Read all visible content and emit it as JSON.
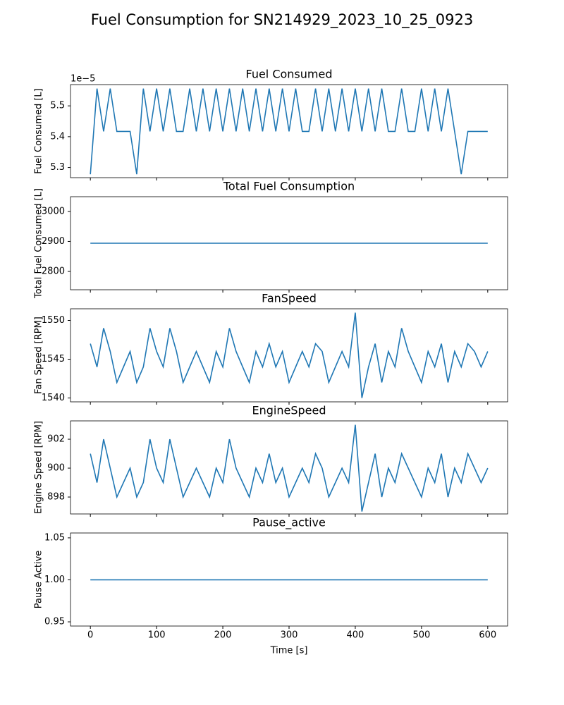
{
  "title": "Fuel Consumption for SN214929_2023_10_25_0923",
  "chart_data": [
    {
      "type": "line",
      "title": "Fuel Consumed",
      "ylabel": "Fuel Consumed [L]",
      "offset_text": "1e−5",
      "color": "#1f77b4",
      "xlim": [
        -30,
        630
      ],
      "xticks": [
        0,
        100,
        200,
        300,
        400,
        500,
        600
      ],
      "ylim": [
        5.267,
        5.569
      ],
      "yticks": [
        5.3,
        5.4,
        5.5
      ],
      "x": [
        0,
        10,
        20,
        30,
        40,
        50,
        60,
        70,
        80,
        90,
        100,
        110,
        120,
        130,
        140,
        150,
        160,
        170,
        180,
        190,
        200,
        210,
        220,
        230,
        240,
        250,
        260,
        270,
        280,
        290,
        300,
        310,
        320,
        330,
        340,
        350,
        360,
        370,
        380,
        390,
        400,
        410,
        420,
        430,
        440,
        450,
        460,
        470,
        480,
        490,
        500,
        510,
        520,
        530,
        540,
        550,
        560,
        570,
        580,
        590,
        600
      ],
      "values": [
        5.278,
        5.556,
        5.417,
        5.556,
        5.417,
        5.417,
        5.417,
        5.278,
        5.556,
        5.417,
        5.556,
        5.417,
        5.556,
        5.417,
        5.417,
        5.556,
        5.417,
        5.556,
        5.417,
        5.556,
        5.417,
        5.556,
        5.417,
        5.556,
        5.417,
        5.556,
        5.417,
        5.556,
        5.417,
        5.556,
        5.417,
        5.556,
        5.417,
        5.417,
        5.556,
        5.417,
        5.556,
        5.417,
        5.556,
        5.417,
        5.556,
        5.417,
        5.556,
        5.417,
        5.556,
        5.417,
        5.417,
        5.556,
        5.417,
        5.417,
        5.556,
        5.417,
        5.556,
        5.417,
        5.556,
        5.417,
        5.278,
        5.417,
        5.417,
        5.417,
        5.417
      ]
    },
    {
      "type": "line",
      "title": "Total Fuel Consumption",
      "ylabel": "Total Fuel Consumed [L]",
      "color": "#1f77b4",
      "xlim": [
        -30,
        630
      ],
      "xticks": [
        0,
        100,
        200,
        300,
        400,
        500,
        600
      ],
      "ylim": [
        2739,
        3049
      ],
      "yticks": [
        2800,
        2900,
        3000
      ],
      "x": [
        0,
        600
      ],
      "values": [
        2894,
        2894
      ]
    },
    {
      "type": "line",
      "title": "FanSpeed",
      "ylabel": "Fan Speed [RPM]",
      "color": "#1f77b4",
      "xlim": [
        -30,
        630
      ],
      "xticks": [
        0,
        100,
        200,
        300,
        400,
        500,
        600
      ],
      "ylim": [
        1539.5,
        1551.5
      ],
      "yticks": [
        1540,
        1545,
        1550
      ],
      "x": [
        0,
        10,
        20,
        30,
        40,
        50,
        60,
        70,
        80,
        90,
        100,
        110,
        120,
        130,
        140,
        150,
        160,
        170,
        180,
        190,
        200,
        210,
        220,
        230,
        240,
        250,
        260,
        270,
        280,
        290,
        300,
        310,
        320,
        330,
        340,
        350,
        360,
        370,
        380,
        390,
        400,
        410,
        420,
        430,
        440,
        450,
        460,
        470,
        480,
        490,
        500,
        510,
        520,
        530,
        540,
        550,
        560,
        570,
        580,
        590,
        600
      ],
      "values": [
        1547,
        1544,
        1549,
        1546,
        1542,
        1544,
        1546,
        1542,
        1544,
        1549,
        1546,
        1544,
        1549,
        1546,
        1542,
        1544,
        1546,
        1544,
        1542,
        1546,
        1544,
        1549,
        1546,
        1544,
        1542,
        1546,
        1544,
        1547,
        1544,
        1546,
        1542,
        1544,
        1546,
        1544,
        1547,
        1546,
        1542,
        1544,
        1546,
        1544,
        1551,
        1540,
        1544,
        1547,
        1542,
        1546,
        1544,
        1549,
        1546,
        1544,
        1542,
        1546,
        1544,
        1547,
        1542,
        1546,
        1544,
        1547,
        1546,
        1544,
        1546
      ]
    },
    {
      "type": "line",
      "title": "EngineSpeed",
      "ylabel": "Engine Speed [RPM]",
      "color": "#1f77b4",
      "xlim": [
        -30,
        630
      ],
      "xticks": [
        0,
        100,
        200,
        300,
        400,
        500,
        600
      ],
      "ylim": [
        896.83,
        903.27
      ],
      "yticks": [
        898,
        900,
        902
      ],
      "x": [
        0,
        10,
        20,
        30,
        40,
        50,
        60,
        70,
        80,
        90,
        100,
        110,
        120,
        130,
        140,
        150,
        160,
        170,
        180,
        190,
        200,
        210,
        220,
        230,
        240,
        250,
        260,
        270,
        280,
        290,
        300,
        310,
        320,
        330,
        340,
        350,
        360,
        370,
        380,
        390,
        400,
        410,
        420,
        430,
        440,
        450,
        460,
        470,
        480,
        490,
        500,
        510,
        520,
        530,
        540,
        550,
        560,
        570,
        580,
        590,
        600
      ],
      "values": [
        901,
        899,
        902,
        900,
        898,
        899,
        900,
        898,
        899,
        902,
        900,
        899,
        902,
        900,
        898,
        899,
        900,
        899,
        898,
        900,
        899,
        902,
        900,
        899,
        898,
        900,
        899,
        901,
        899,
        900,
        898,
        899,
        900,
        899,
        901,
        900,
        898,
        899,
        900,
        899,
        903,
        897,
        899,
        901,
        898,
        900,
        899,
        901,
        900,
        899,
        898,
        900,
        899,
        901,
        898,
        900,
        899,
        901,
        900,
        899,
        900
      ]
    },
    {
      "type": "line",
      "title": "Pause_active",
      "ylabel": "Pause Active",
      "xlabel": "Time [s]",
      "color": "#1f77b4",
      "xlim": [
        -30,
        630
      ],
      "xticks": [
        0,
        100,
        200,
        300,
        400,
        500,
        600
      ],
      "ylim": [
        0.945,
        1.0558
      ],
      "yticks": [
        0.95,
        {
          "value": 1,
          "label": "1.00"
        },
        1.05
      ],
      "x": [
        0,
        600
      ],
      "values": [
        1,
        1
      ]
    }
  ]
}
